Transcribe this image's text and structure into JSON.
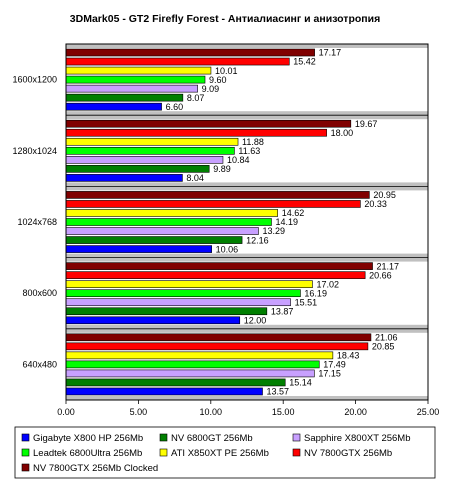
{
  "chart_data": {
    "type": "bar",
    "orientation": "horizontal",
    "title": "3DMark05 - GT2 Firefly Forest - Антиалиасинг и анизотропия",
    "categories": [
      "1600x1200",
      "1280x1024",
      "1024x768",
      "800x600",
      "640x480"
    ],
    "series": [
      {
        "name": "Gigabyte X800 HP 256Mb",
        "color": "#0000ff",
        "values": [
          6.6,
          8.04,
          10.06,
          12.0,
          13.57
        ]
      },
      {
        "name": "NV 6800GT 256Mb",
        "color": "#007f00",
        "values": [
          8.07,
          9.89,
          12.16,
          13.87,
          15.14
        ]
      },
      {
        "name": "Sapphire X800XT 256Mb",
        "color": "#c8a0ff",
        "values": [
          9.09,
          10.84,
          13.29,
          15.51,
          17.15
        ]
      },
      {
        "name": "Leadtek 6800Ultra 256Mb",
        "color": "#00ff00",
        "values": [
          9.6,
          11.63,
          14.19,
          16.19,
          17.49
        ]
      },
      {
        "name": "ATI X850XT PE 256Mb",
        "color": "#ffff00",
        "values": [
          10.01,
          11.88,
          14.62,
          17.02,
          18.43
        ]
      },
      {
        "name": "NV 7800GTX 256Mb",
        "color": "#ff0000",
        "values": [
          15.42,
          18.0,
          20.33,
          20.66,
          20.85
        ]
      },
      {
        "name": "NV 7800GTX 256Mb Clocked",
        "color": "#800000",
        "values": [
          17.17,
          19.67,
          20.95,
          21.17,
          21.06
        ]
      }
    ],
    "value_labels": [
      [
        "6.60",
        "8.04",
        "10.06",
        "12.00",
        "13.57"
      ],
      [
        "8.07",
        "9.89",
        "12.16",
        "13.87",
        "15.14"
      ],
      [
        "9.09",
        "10.84",
        "13.29",
        "15.51",
        "17.15"
      ],
      [
        "9.60",
        "11.63",
        "14.19",
        "16.19",
        "17.49"
      ],
      [
        "10.01",
        "11.88",
        "14.62",
        "17.02",
        "18.43"
      ],
      [
        "15.42",
        "18.00",
        "20.33",
        "20.66",
        "20.85"
      ],
      [
        "17.17",
        "19.67",
        "20.95",
        "21.17",
        "21.06"
      ]
    ],
    "x_ticks": [
      "0.00",
      "5.00",
      "10.00",
      "15.00",
      "20.00",
      "25.00"
    ],
    "xlim": [
      0,
      25
    ],
    "xlabel": "",
    "ylabel": "",
    "grid": false,
    "legend_position": "bottom",
    "plot_background": "#ffffff",
    "group_band_color": "#c0c0c0"
  }
}
